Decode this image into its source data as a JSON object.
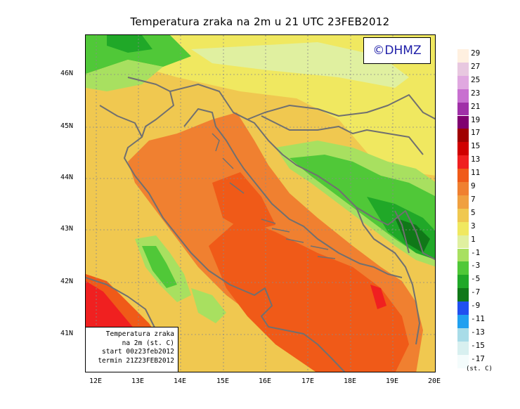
{
  "title": "Temperatura zraka na 2m u 21 UTC 23FEB2012",
  "copyright": "©DHMZ",
  "info": {
    "line1": "Temperatura zraka",
    "line2": "na 2m (st. C)",
    "line3": "start 00z23feb2012",
    "line4": "termin 21Z23FEB2012"
  },
  "lat_labels": [
    "46N",
    "45N",
    "44N",
    "43N",
    "42N",
    "41N"
  ],
  "lon_labels": [
    "12E",
    "13E",
    "14E",
    "15E",
    "16E",
    "17E",
    "18E",
    "19E",
    "20E"
  ],
  "units": "(st. C)",
  "legend": [
    {
      "label": "29",
      "color": "#fff0e0"
    },
    {
      "label": "27",
      "color": "#e8c8e0"
    },
    {
      "label": "25",
      "color": "#e0a8e0"
    },
    {
      "label": "23",
      "color": "#c870d0"
    },
    {
      "label": "21",
      "color": "#a030a8"
    },
    {
      "label": "19",
      "color": "#800070"
    },
    {
      "label": "17",
      "color": "#a00000"
    },
    {
      "label": "15",
      "color": "#d00000"
    },
    {
      "label": "13",
      "color": "#f02020"
    },
    {
      "label": "11",
      "color": "#f05a18"
    },
    {
      "label": "9",
      "color": "#f08030"
    },
    {
      "label": "7",
      "color": "#f0a040"
    },
    {
      "label": "5",
      "color": "#f0c850"
    },
    {
      "label": "3",
      "color": "#f0e860"
    },
    {
      "label": "1",
      "color": "#e0f0a0"
    },
    {
      "label": "-1",
      "color": "#a8e060"
    },
    {
      "label": "-3",
      "color": "#50c838"
    },
    {
      "label": "-5",
      "color": "#20a828"
    },
    {
      "label": "-7",
      "color": "#107818"
    },
    {
      "label": "-9",
      "color": "#2050f0"
    },
    {
      "label": "-11",
      "color": "#20a0f0"
    },
    {
      "label": "-13",
      "color": "#a8dce8"
    },
    {
      "label": "-15",
      "color": "#d8f0f0"
    },
    {
      "label": "-17",
      "color": "#f4fcfc"
    }
  ]
}
